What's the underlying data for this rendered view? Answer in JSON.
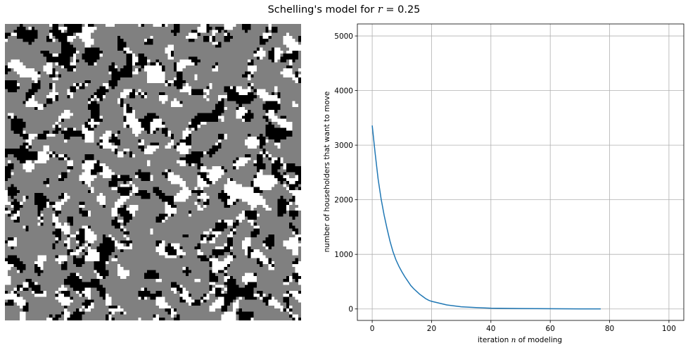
{
  "figure": {
    "title_prefix": "Schelling's model for ",
    "title_var": "r",
    "title_suffix": " = 0.25"
  },
  "colors": {
    "empty": "#808080",
    "group_a": "#000000",
    "group_b": "#ffffff",
    "line": "#1f77b4",
    "grid": "#b0b0b0"
  },
  "chart_data": [
    {
      "type": "heatmap",
      "description_grid": "100 x 100 residential grid",
      "grid_size": 100,
      "categories": [
        "empty",
        "group_a",
        "group_b"
      ],
      "axes_visible": false
    },
    {
      "type": "line",
      "xlabel_prefix": "iteration ",
      "xlabel_var": "n",
      "xlabel_suffix": " of modeling",
      "ylabel": "number of householders that want to move",
      "xlim": [
        -5,
        105
      ],
      "ylim": [
        -210,
        5220
      ],
      "xticks": [
        0,
        20,
        40,
        60,
        80,
        100
      ],
      "yticks": [
        0,
        1000,
        2000,
        3000,
        4000,
        5000
      ],
      "grid": true,
      "series": [
        {
          "x": [
            0,
            1,
            2,
            3,
            4,
            5,
            6,
            7,
            8,
            9,
            10,
            11,
            12,
            13,
            14,
            15,
            16,
            17,
            18,
            19,
            20,
            25,
            30,
            35,
            40,
            45,
            50,
            55,
            60,
            65,
            70,
            77
          ],
          "y": [
            3360,
            2850,
            2380,
            2020,
            1720,
            1470,
            1240,
            1050,
            900,
            780,
            680,
            590,
            510,
            430,
            370,
            320,
            270,
            230,
            190,
            160,
            140,
            75,
            40,
            25,
            15,
            10,
            8,
            6,
            4,
            3,
            2,
            1
          ]
        }
      ]
    }
  ]
}
